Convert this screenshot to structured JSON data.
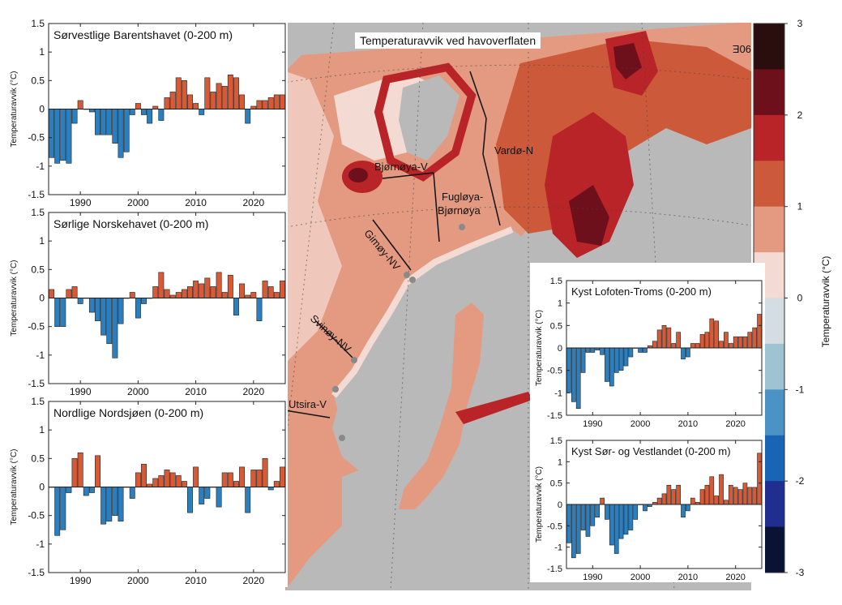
{
  "map": {
    "title": "Temperaturavvik ved havoverflaten",
    "lon_label": "90E",
    "sections": [
      "Bjørnøya-V",
      "Fugløya-Bjørnøya",
      "Vardø-N",
      "Gimøy-NV",
      "Svinøy-NV",
      "Utsira-V"
    ],
    "fugloya_line1": "Fugløya-",
    "fugloya_line2": "Bjørnøya",
    "colors": {
      "land": "#b9b9b9",
      "sea_ice": "#d9dde0"
    }
  },
  "colorbar": {
    "label": "Temperaturavvik (°C)",
    "ticks": [
      3,
      2,
      1,
      0,
      -1,
      -2,
      -3
    ],
    "tick_labels": [
      "3",
      "2",
      "1",
      "0",
      "-1",
      "-2",
      "-3"
    ],
    "colors_top_to_bottom": [
      "#2a0d0d",
      "#6e0f1c",
      "#b82428",
      "#cc5a3a",
      "#e39a80",
      "#f3dad2",
      "#d4dde3",
      "#9ec3d3",
      "#4a93c4",
      "#1a64b5",
      "#1f2e8f",
      "#0a1333"
    ]
  },
  "chart_data": [
    {
      "type": "bar",
      "title": "Sørvestlige Barentshavet (0-200 m)",
      "xlabel": "",
      "ylabel": "Temperaturavvik (°C)",
      "ylim": [
        -1.5,
        1.5
      ],
      "yticks": [
        "1.5",
        "1",
        "0.5",
        "0",
        "-0.5",
        "-1",
        "-1.5"
      ],
      "xticks": [
        "1990",
        "2000",
        "2010",
        "2020"
      ],
      "year_start": 1985,
      "values": [
        -0.85,
        -0.95,
        -0.9,
        -0.95,
        -0.25,
        0.15,
        0.0,
        -0.05,
        -0.45,
        -0.45,
        -0.45,
        -0.6,
        -0.85,
        -0.75,
        -0.1,
        0.1,
        -0.1,
        -0.25,
        0.05,
        -0.2,
        0.2,
        0.3,
        0.55,
        0.5,
        0.25,
        0.1,
        -0.1,
        0.55,
        0.3,
        0.45,
        0.4,
        0.6,
        0.55,
        0.25,
        -0.25,
        0.05,
        0.15,
        0.15,
        0.2,
        0.25,
        0.25
      ]
    },
    {
      "type": "bar",
      "title": "Sørlige Norskehavet (0-200 m)",
      "xlabel": "",
      "ylabel": "Temperaturavvik (°C)",
      "ylim": [
        -1.5,
        1.5
      ],
      "yticks": [
        "1.5",
        "1",
        "0.5",
        "0",
        "-0.5",
        "-1",
        "-1.5"
      ],
      "xticks": [
        "1990",
        "2000",
        "2010",
        "2020"
      ],
      "year_start": 1985,
      "values": [
        0.15,
        -0.5,
        -0.5,
        0.15,
        0.2,
        -0.1,
        0.0,
        -0.25,
        -0.4,
        -0.65,
        -0.8,
        -1.05,
        -0.45,
        0.0,
        0.1,
        -0.35,
        -0.1,
        0.0,
        0.2,
        0.45,
        0.15,
        0.05,
        0.1,
        0.15,
        0.2,
        0.3,
        0.25,
        0.35,
        0.2,
        0.45,
        0.1,
        0.4,
        -0.3,
        0.25,
        0.05,
        0.1,
        -0.4,
        0.3,
        0.2,
        0.1,
        0.3
      ]
    },
    {
      "type": "bar",
      "title": "Nordlige Nordsjøen (0-200 m)",
      "xlabel": "",
      "ylabel": "Temperaturavvik (°C)",
      "ylim": [
        -1.5,
        1.5
      ],
      "yticks": [
        "1.5",
        "1",
        "0.5",
        "0",
        "-0.5",
        "-1",
        "-1.5"
      ],
      "xticks": [
        "1990",
        "2000",
        "2010",
        "2020"
      ],
      "year_start": 1985,
      "values": [
        0.0,
        -0.85,
        -0.75,
        -0.1,
        0.5,
        0.6,
        -0.15,
        -0.1,
        0.55,
        -0.65,
        -0.6,
        -0.5,
        -0.6,
        0.0,
        -0.2,
        0.25,
        0.4,
        0.05,
        0.15,
        0.2,
        0.3,
        0.25,
        0.2,
        0.1,
        -0.45,
        0.35,
        -0.3,
        -0.2,
        0.0,
        -0.35,
        0.25,
        0.25,
        0.1,
        0.35,
        -0.45,
        0.3,
        0.3,
        0.5,
        -0.05,
        0.1,
        0.35
      ]
    },
    {
      "type": "bar",
      "title": "Kyst Lofoten-Troms (0-200 m)",
      "xlabel": "",
      "ylabel": "Temperaturavvik (°C)",
      "ylim": [
        -1.5,
        1.5
      ],
      "yticks": [
        "1.5",
        "1",
        "0.5",
        "0",
        "-0.5",
        "-1",
        "-1.5"
      ],
      "xticks": [
        "1990",
        "2000",
        "2010",
        "2020"
      ],
      "year_start": 1985,
      "values": [
        -1.0,
        -1.2,
        -1.35,
        -0.55,
        -0.1,
        -0.1,
        -0.05,
        -0.15,
        -0.75,
        -0.85,
        -0.55,
        -0.5,
        -0.4,
        -0.2,
        0.0,
        -0.1,
        -0.1,
        0.05,
        0.15,
        0.4,
        0.5,
        0.45,
        0.1,
        0.35,
        -0.25,
        -0.2,
        0.1,
        0.1,
        0.3,
        0.35,
        0.65,
        0.6,
        0.15,
        0.35,
        0.1,
        0.25,
        0.25,
        0.25,
        0.35,
        0.45,
        0.75
      ]
    },
    {
      "type": "bar",
      "title": "Kyst Sør- og Vestlandet (0-200 m)",
      "xlabel": "",
      "ylabel": "Temperaturavvik (°C)",
      "ylim": [
        -1.5,
        1.5
      ],
      "yticks": [
        "1.5",
        "1",
        "0.5",
        "0",
        "-0.5",
        "-1",
        "-1.5"
      ],
      "xticks": [
        "1990",
        "2000",
        "2010",
        "2020"
      ],
      "year_start": 1985,
      "values": [
        -0.9,
        -1.25,
        -1.15,
        -0.6,
        -0.75,
        -0.5,
        -0.3,
        0.15,
        -0.35,
        -0.95,
        -1.15,
        -0.8,
        -0.7,
        -0.6,
        -0.35,
        0.0,
        -0.15,
        -0.05,
        0.05,
        0.15,
        0.25,
        0.45,
        0.35,
        0.45,
        -0.3,
        -0.15,
        0.15,
        0.05,
        0.35,
        0.45,
        0.65,
        0.2,
        0.7,
        0.1,
        0.45,
        0.4,
        0.35,
        0.5,
        0.4,
        0.4,
        1.2
      ]
    }
  ]
}
